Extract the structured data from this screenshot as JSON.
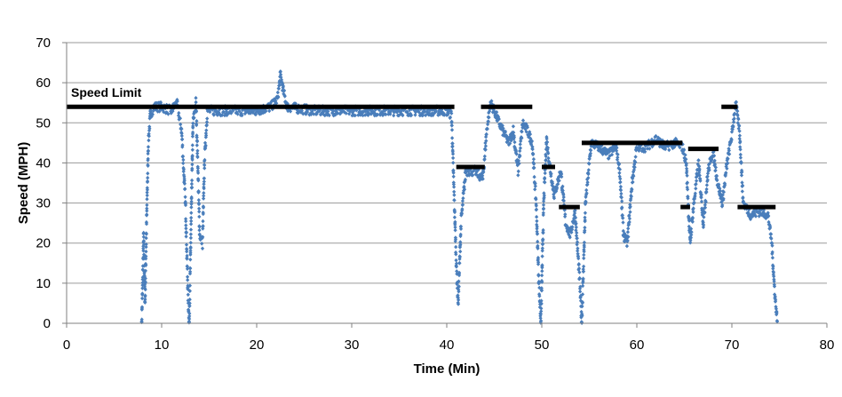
{
  "chart_data": {
    "type": "scatter",
    "title": "",
    "xlabel": "Time (Min)",
    "ylabel": "Speed (MPH)",
    "xlim": [
      0,
      80
    ],
    "ylim": [
      0,
      70
    ],
    "xticks": [
      0,
      10,
      20,
      30,
      40,
      50,
      60,
      70,
      80
    ],
    "yticks": [
      0,
      10,
      20,
      30,
      40,
      50,
      60,
      70
    ],
    "grid": "horizontal",
    "legend": "none",
    "annotation": "Speed Limit",
    "colors": {
      "points": "#4a7ebb",
      "limit": "#000000",
      "grid": "#9a9a9a"
    },
    "speed_profile": [
      [
        7.9,
        0
      ],
      [
        8.0,
        10
      ],
      [
        8.1,
        22
      ],
      [
        8.25,
        5
      ],
      [
        8.4,
        24
      ],
      [
        8.6,
        45
      ],
      [
        8.8,
        52
      ],
      [
        9.2,
        54
      ],
      [
        10.0,
        54
      ],
      [
        11.0,
        53
      ],
      [
        11.6,
        55
      ],
      [
        12.1,
        48
      ],
      [
        12.5,
        30
      ],
      [
        12.8,
        5
      ],
      [
        12.9,
        0
      ],
      [
        13.1,
        25
      ],
      [
        13.3,
        50
      ],
      [
        13.6,
        55
      ],
      [
        13.8,
        40
      ],
      [
        14.0,
        22
      ],
      [
        14.3,
        20
      ],
      [
        14.5,
        40
      ],
      [
        14.8,
        53
      ],
      [
        16,
        53
      ],
      [
        18,
        53
      ],
      [
        20,
        53
      ],
      [
        21.5,
        54
      ],
      [
        22.2,
        56
      ],
      [
        22.5,
        62
      ],
      [
        22.8,
        58
      ],
      [
        23.2,
        54
      ],
      [
        26,
        53
      ],
      [
        30,
        53
      ],
      [
        33,
        53
      ],
      [
        36,
        53
      ],
      [
        40,
        53
      ],
      [
        40.5,
        52
      ],
      [
        40.8,
        30
      ],
      [
        41.0,
        15
      ],
      [
        41.2,
        5
      ],
      [
        41.5,
        25
      ],
      [
        42,
        38
      ],
      [
        43,
        38
      ],
      [
        43.8,
        36
      ],
      [
        44.2,
        48
      ],
      [
        44.6,
        55
      ],
      [
        45.0,
        53
      ],
      [
        45.5,
        50
      ],
      [
        46.5,
        45
      ],
      [
        47,
        48
      ],
      [
        47.5,
        38
      ],
      [
        48,
        50
      ],
      [
        48.5,
        48
      ],
      [
        49,
        45
      ],
      [
        49.4,
        30
      ],
      [
        49.7,
        10
      ],
      [
        49.9,
        0
      ],
      [
        50.2,
        30
      ],
      [
        50.5,
        46
      ],
      [
        50.8,
        40
      ],
      [
        51.3,
        32
      ],
      [
        52,
        38
      ],
      [
        52.5,
        25
      ],
      [
        53,
        22
      ],
      [
        53.5,
        28
      ],
      [
        54.0,
        10
      ],
      [
        54.2,
        0
      ],
      [
        54.6,
        30
      ],
      [
        55.2,
        45
      ],
      [
        56,
        44
      ],
      [
        57,
        42
      ],
      [
        57.8,
        44
      ],
      [
        58.2,
        38
      ],
      [
        58.6,
        22
      ],
      [
        59,
        20
      ],
      [
        59.5,
        35
      ],
      [
        60,
        44
      ],
      [
        61,
        44
      ],
      [
        62,
        46
      ],
      [
        63,
        44
      ],
      [
        64,
        45
      ],
      [
        64.8,
        44
      ],
      [
        65.2,
        40
      ],
      [
        65.6,
        20
      ],
      [
        66,
        30
      ],
      [
        66.5,
        40
      ],
      [
        67,
        25
      ],
      [
        67.5,
        38
      ],
      [
        68,
        43
      ],
      [
        68.5,
        35
      ],
      [
        69,
        30
      ],
      [
        69.5,
        40
      ],
      [
        70,
        47
      ],
      [
        70.4,
        55
      ],
      [
        70.8,
        48
      ],
      [
        71.2,
        30
      ],
      [
        72,
        27
      ],
      [
        73,
        28
      ],
      [
        73.8,
        27
      ],
      [
        74.2,
        20
      ],
      [
        74.5,
        8
      ],
      [
        74.6,
        5
      ],
      [
        74.8,
        0
      ]
    ],
    "speed_limit_segments": [
      {
        "x": [
          0,
          40.8
        ],
        "y": 54
      },
      {
        "x": [
          41.0,
          44.0
        ],
        "y": 39
      },
      {
        "x": [
          43.6,
          49.0
        ],
        "y": 54
      },
      {
        "x": [
          50.0,
          51.4
        ],
        "y": 39
      },
      {
        "x": [
          51.8,
          54.0
        ],
        "y": 29
      },
      {
        "x": [
          54.2,
          64.8
        ],
        "y": 45
      },
      {
        "x": [
          64.6,
          65.6
        ],
        "y": 29
      },
      {
        "x": [
          65.4,
          68.6
        ],
        "y": 43.5
      },
      {
        "x": [
          68.9,
          70.6
        ],
        "y": 54
      },
      {
        "x": [
          70.6,
          74.6
        ],
        "y": 29
      }
    ]
  }
}
